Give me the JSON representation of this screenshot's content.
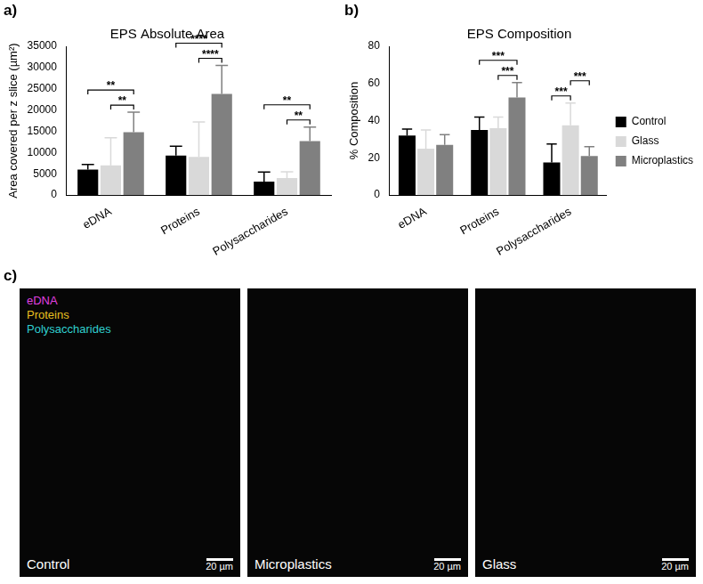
{
  "chart_data": [
    {
      "type": "bar",
      "panel_label": "a)",
      "title": "EPS Absolute Area",
      "y_label": "Area covered per z slice (µm²)",
      "categories": [
        "eDNA",
        "Proteins",
        "Polysaccharides"
      ],
      "series": [
        {
          "name": "Control",
          "color": "#000000",
          "values": [
            6000,
            9300,
            3200
          ],
          "errors": [
            1200,
            2200,
            2200
          ]
        },
        {
          "name": "Glass",
          "color": "#d9d9d9",
          "values": [
            7000,
            9000,
            4000
          ],
          "errors": [
            6500,
            8200,
            1500
          ]
        },
        {
          "name": "Microplastics",
          "color": "#808080",
          "values": [
            14800,
            23800,
            12700
          ],
          "errors": [
            4700,
            6700,
            3300
          ]
        }
      ],
      "ylim": [
        0,
        35000
      ],
      "yticks": [
        0,
        5000,
        10000,
        15000,
        20000,
        25000,
        30000,
        35000
      ],
      "grid": false,
      "significance": [
        {
          "category": "eDNA",
          "from": "Control",
          "to": "Microplastics",
          "label": "**"
        },
        {
          "category": "eDNA",
          "from": "Glass",
          "to": "Microplastics",
          "label": "**"
        },
        {
          "category": "Proteins",
          "from": "Control",
          "to": "Microplastics",
          "label": "****"
        },
        {
          "category": "Proteins",
          "from": "Glass",
          "to": "Microplastics",
          "label": "****"
        },
        {
          "category": "Polysaccharides",
          "from": "Control",
          "to": "Microplastics",
          "label": "**"
        },
        {
          "category": "Polysaccharides",
          "from": "Glass",
          "to": "Microplastics",
          "label": "**"
        }
      ]
    },
    {
      "type": "bar",
      "panel_label": "b)",
      "title": "EPS Composition",
      "y_label": "% Composition",
      "categories": [
        "eDNA",
        "Proteins",
        "Polysaccharides"
      ],
      "series": [
        {
          "name": "Control",
          "color": "#000000",
          "values": [
            32,
            35,
            17.5
          ],
          "errors": [
            3.5,
            7,
            10
          ]
        },
        {
          "name": "Glass",
          "color": "#d9d9d9",
          "values": [
            25,
            36,
            37.5
          ],
          "errors": [
            10,
            6,
            12
          ]
        },
        {
          "name": "Microplastics",
          "color": "#808080",
          "values": [
            27,
            52.5,
            21
          ],
          "errors": [
            5.5,
            8,
            5
          ]
        }
      ],
      "ylim": [
        0,
        80
      ],
      "yticks": [
        0,
        20,
        40,
        60,
        80
      ],
      "grid": false,
      "legend": "right",
      "significance": [
        {
          "category": "Proteins",
          "from": "Control",
          "to": "Microplastics",
          "label": "***"
        },
        {
          "category": "Proteins",
          "from": "Glass",
          "to": "Microplastics",
          "label": "***"
        },
        {
          "category": "Polysaccharides",
          "from": "Control",
          "to": "Glass",
          "label": "***"
        },
        {
          "category": "Polysaccharides",
          "from": "Glass",
          "to": "Microplastics",
          "label": "***"
        }
      ]
    }
  ],
  "panel_c": {
    "panel_label": "c)",
    "stains": [
      {
        "name": "eDNA",
        "color": "#e040e0"
      },
      {
        "name": "Proteins",
        "color": "#e8c020"
      },
      {
        "name": "Polysaccharides",
        "color": "#30d0d0"
      }
    ],
    "images": [
      "Control",
      "Microplastics",
      "Glass"
    ],
    "scale_bar": "20 µm"
  }
}
